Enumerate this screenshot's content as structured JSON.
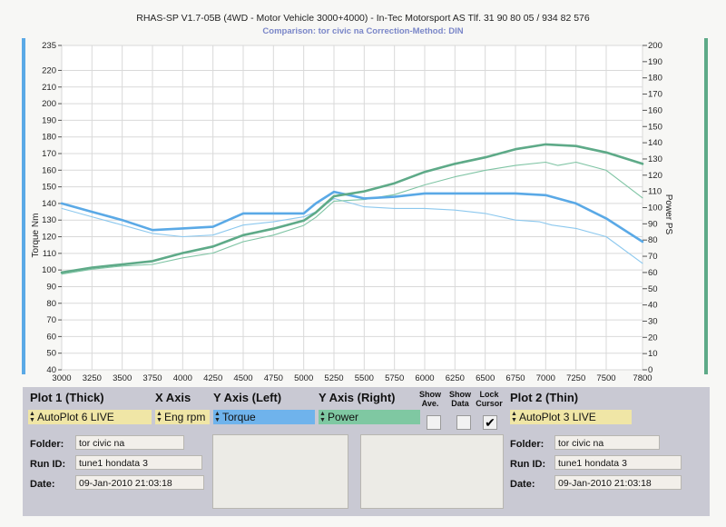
{
  "header": {
    "title": "RHAS-SP V1.7-05B   (4WD - Motor Vehicle 3000+4000) - In-Tec Motorsport AS Tlf. 31 90 80 05 / 934 82 576",
    "subtitle": "Comparison: tor civic na     Correction-Method: DIN"
  },
  "chart_data": {
    "type": "line",
    "xlim": [
      3000,
      7800
    ],
    "ylim_left": [
      40,
      235
    ],
    "ylim_right": [
      0,
      200
    ],
    "ylabel_left": "Torque Nm",
    "ylabel_right": "Power PS",
    "x_ticks": [
      "3000",
      "3250",
      "3500",
      "3750",
      "4000",
      "4250",
      "4500",
      "4750",
      "5000",
      "5250",
      "5500",
      "5750",
      "6000",
      "6250",
      "6500",
      "6750",
      "7000",
      "7250",
      "7500",
      "7800"
    ],
    "y_left_ticks": [
      "235",
      "220",
      "210",
      "200",
      "190",
      "180",
      "170",
      "160",
      "150",
      "140",
      "130",
      "120",
      "110",
      "100",
      "90",
      "80",
      "70",
      "60",
      "50",
      "40"
    ],
    "y_right_ticks": [
      "200",
      "190",
      "180",
      "170",
      "160",
      "150",
      "140",
      "130",
      "120",
      "110",
      "100",
      "90",
      "80",
      "70",
      "60",
      "50",
      "40",
      "30",
      "20",
      "10",
      "0"
    ],
    "grid": true,
    "series": [
      {
        "name": "Torque",
        "axis": "left",
        "weight": "thick",
        "color": "#5aa9e6",
        "x": [
          3000,
          3250,
          3500,
          3750,
          4000,
          4250,
          4500,
          4750,
          5000,
          5100,
          5250,
          5500,
          5750,
          6000,
          6250,
          6500,
          6750,
          7000,
          7250,
          7500,
          7800
        ],
        "y": [
          140,
          135,
          130,
          124,
          125,
          126,
          134,
          134,
          134,
          140,
          147,
          143,
          144,
          146,
          146,
          146,
          146,
          145,
          140,
          131,
          117
        ]
      },
      {
        "name": "Power",
        "axis": "right",
        "weight": "thick",
        "color": "#5eaa88",
        "x": [
          3000,
          3250,
          3500,
          3750,
          4000,
          4250,
          4500,
          4750,
          5000,
          5100,
          5250,
          5500,
          5750,
          6000,
          6250,
          6500,
          6750,
          7000,
          7250,
          7500,
          7800
        ],
        "y": [
          60,
          63,
          65,
          67,
          72,
          76,
          83,
          87,
          92,
          97,
          107,
          110,
          115,
          122,
          127,
          131,
          136,
          139,
          138,
          134,
          127
        ]
      },
      {
        "name": "Torque",
        "axis": "left",
        "weight": "thin",
        "color": "#8cc8ee",
        "x": [
          3000,
          3250,
          3500,
          3750,
          4000,
          4250,
          4500,
          4750,
          5000,
          5100,
          5250,
          5500,
          5750,
          6000,
          6250,
          6500,
          6750,
          6950,
          7050,
          7250,
          7500,
          7800
        ],
        "y": [
          137,
          132,
          127,
          122,
          120,
          121,
          127,
          129,
          132,
          135,
          143,
          138,
          137,
          137,
          136,
          134,
          130,
          129,
          127,
          125,
          120,
          104
        ]
      },
      {
        "name": "Power",
        "axis": "right",
        "weight": "thin",
        "color": "#7fc4a4",
        "x": [
          3000,
          3250,
          3500,
          3750,
          4000,
          4250,
          4500,
          4750,
          5000,
          5100,
          5250,
          5500,
          5750,
          6000,
          6250,
          6500,
          6750,
          7000,
          7100,
          7250,
          7500,
          7800
        ],
        "y": [
          59,
          62,
          64,
          65,
          69,
          72,
          79,
          83,
          89,
          94,
          104,
          105,
          108,
          114,
          119,
          123,
          126,
          128,
          126,
          128,
          123,
          106
        ]
      }
    ]
  },
  "panel": {
    "plot1_header": "Plot 1 (Thick)",
    "xaxis_header": "X Axis",
    "yleft_header": "Y Axis (Left)",
    "yright_header": "Y Axis (Right)",
    "show_ave": "Show Ave.",
    "show_data": "Show Data",
    "lock_cursor": "Lock Cursor",
    "plot2_header": "Plot 2 (Thin)",
    "plot1_select": "AutoPlot 6 LIVE",
    "xaxis_select": "Eng rpm",
    "yleft_select": "Torque",
    "yright_select": "Power",
    "plot2_select": "AutoPlot 3 LIVE",
    "colors": {
      "plot1": "#f0e6a6",
      "yleft": "#6fb3ec",
      "yright": "#7fc8a2",
      "plot2": "#f0e6a6"
    },
    "lock_cursor_checked": true,
    "lock_cursor_mark": "✔",
    "left": {
      "folder_label": "Folder:",
      "folder": "tor civic na",
      "runid_label": "Run ID:",
      "runid": "tune1 hondata 3",
      "date_label": "Date:",
      "date": "09-Jan-2010  21:03:18"
    },
    "right": {
      "folder_label": "Folder:",
      "folder": "tor civic na",
      "runid_label": "Run ID:",
      "runid": "tune1 hondata 3",
      "date_label": "Date:",
      "date": "09-Jan-2010  21:03:18"
    }
  }
}
